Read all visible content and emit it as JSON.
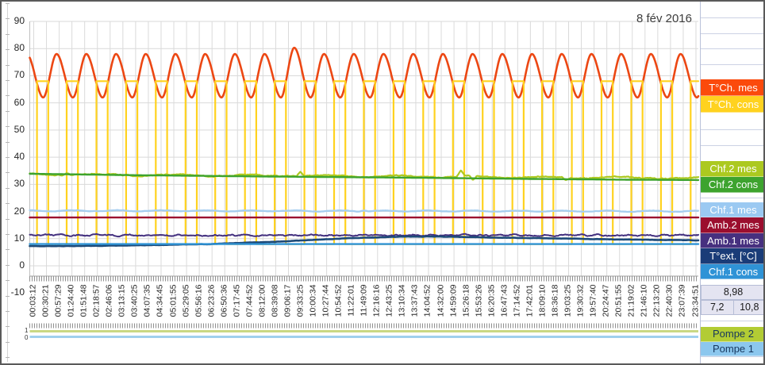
{
  "title": "8 fév 2016",
  "chart_data": {
    "type": "line",
    "title": "8 fév 2016",
    "grid": true,
    "legend_position": "right-spreadsheet-cells",
    "y_axis": {
      "min": -10,
      "max": 90,
      "step": 10,
      "ticks": [
        90,
        80,
        70,
        60,
        50,
        40,
        30,
        20,
        10,
        0,
        -10
      ]
    },
    "x_axis": {
      "labels": [
        "00:03:12",
        "00:30:21",
        "00:57:29",
        "01:24:40",
        "01:51:48",
        "02:18:57",
        "02:46:06",
        "03:13:15",
        "03:40:25",
        "04:07:35",
        "04:34:45",
        "05:01:55",
        "05:29:05",
        "05:56:16",
        "06:23:26",
        "06:50:36",
        "07:17:45",
        "07:44:52",
        "08:12:00",
        "08:39:08",
        "09:06:17",
        "09:33:25",
        "10:00:34",
        "10:27:44",
        "10:54:52",
        "11:22:01",
        "11:49:09",
        "12:16:16",
        "12:43:25",
        "13:10:34",
        "13:37:43",
        "14:04:52",
        "14:32:00",
        "14:59:09",
        "15:26:18",
        "15:53:26",
        "16:20:35",
        "16:47:43",
        "17:14:52",
        "17:42:01",
        "18:09:10",
        "18:36:18",
        "19:03:25",
        "19:30:32",
        "19:57:40",
        "20:24:47",
        "20:51:55",
        "21:19:02",
        "21:46:10",
        "22:13:20",
        "22:40:30",
        "23:07:39",
        "23:34:51"
      ]
    },
    "series": [
      {
        "id": "tch-mes",
        "name": "T°Ch. mes",
        "color": "#EC4713",
        "legend_bg": "#FB4A0C",
        "width": 2.6,
        "gen": "sawtooth",
        "min": 62,
        "max": 78,
        "cycles": 22.5,
        "phase0": 0.548,
        "rise": 0.45,
        "boost_cycle": 9,
        "boost_max": 80.3
      },
      {
        "id": "tch-cons",
        "name": "T°Ch. cons",
        "color": "#FFD21F",
        "legend_bg": "#FFD21F",
        "width": 2.2,
        "gen": "square",
        "low": 8,
        "high": 68,
        "cycles": 22.5,
        "phase0": 0.548,
        "on_start": 0.79,
        "on_end": 1.17
      },
      {
        "id": "chf2-mes",
        "name": "Chf.2 mes",
        "color": "#ACC920",
        "legend_bg": "#ACC920",
        "width": 2.2,
        "gen": "wavy",
        "start": 33.7,
        "end": 32.3,
        "noise": 0.3,
        "wobble": 0.28,
        "wfreq": 9,
        "spikes": [
          {
            "t": 0.055,
            "dv": 0.9
          },
          {
            "t": 0.405,
            "dv": 1.7
          },
          {
            "t": 0.645,
            "dv": 2.1
          },
          {
            "t": 0.663,
            "dv": -1.7
          },
          {
            "t": 0.802,
            "dv": -1.0
          }
        ]
      },
      {
        "id": "chf2-cons",
        "name": "Chf.2 cons",
        "color": "#3DA32E",
        "legend_bg": "#3DA32E",
        "width": 2.4,
        "gen": "keypoints",
        "pts": [
          [
            0,
            33.9
          ],
          [
            0.15,
            33.4
          ],
          [
            0.35,
            32.9
          ],
          [
            0.55,
            32.5
          ],
          [
            0.75,
            32.0
          ],
          [
            0.9,
            31.7
          ],
          [
            1,
            31.6
          ]
        ]
      },
      {
        "id": "chf1-mes",
        "name": "Chf.1 mes",
        "color": "#A5CDEF",
        "legend_bg": "#9BC9F2",
        "width": 2.3,
        "gen": "wavy",
        "start": 20.3,
        "end": 20.1,
        "noise": 0.1,
        "wobble": 0.2,
        "wfreq": 15,
        "spikes": [
          {
            "t": 0.5,
            "dv": 0.35
          }
        ]
      },
      {
        "id": "amb2-mes",
        "name": "Amb.2 mes",
        "color": "#9B0E2E",
        "legend_bg": "#9B0E2E",
        "width": 2.4,
        "gen": "flat",
        "value": 17.8
      },
      {
        "id": "amb1-mes",
        "name": "Amb.1 mes",
        "color": "#43307F",
        "legend_bg": "#47307F",
        "width": 2.0,
        "gen": "wavy",
        "start": 11.25,
        "end": 11.25,
        "noise": 0.34,
        "wobble": 0.12,
        "wfreq": 40,
        "spikes": []
      },
      {
        "id": "text-mes",
        "name": "T°ext. [°C]",
        "color": "#1D4A78",
        "legend_bg": "#1A3C78",
        "width": 2.6,
        "gen": "keypoints",
        "noise": 0.07,
        "pts": [
          [
            0,
            7.25
          ],
          [
            0.08,
            7.3
          ],
          [
            0.18,
            7.6
          ],
          [
            0.28,
            8.1
          ],
          [
            0.38,
            9.0
          ],
          [
            0.47,
            10.1
          ],
          [
            0.55,
            10.7
          ],
          [
            0.6,
            10.8
          ],
          [
            0.68,
            10.5
          ],
          [
            0.78,
            10.1
          ],
          [
            0.88,
            9.7
          ],
          [
            1,
            9.4
          ]
        ]
      },
      {
        "id": "chf1-cons",
        "name": "Chf.1 cons",
        "color": "#2F93D6",
        "legend_bg": "#2F93D6",
        "width": 2.4,
        "gen": "flat",
        "value": 8
      }
    ]
  },
  "pump_chart": {
    "y_axis": {
      "labels": [
        "1",
        "0"
      ]
    },
    "series": [
      {
        "id": "pompe2",
        "name": "Pompe 2",
        "color": "#C9D884",
        "legend_bg": "#B2CC34",
        "legend_fg": "#17375E",
        "value": 1
      },
      {
        "id": "pompe1",
        "name": "Pompe 1",
        "color": "#9FD0EE",
        "legend_bg": "#8CC7EE",
        "legend_fg": "#17375E",
        "value": 1
      }
    ]
  },
  "side_panel": {
    "stats": {
      "avg": "8,98",
      "min": "7,2",
      "max": "10,8"
    }
  }
}
